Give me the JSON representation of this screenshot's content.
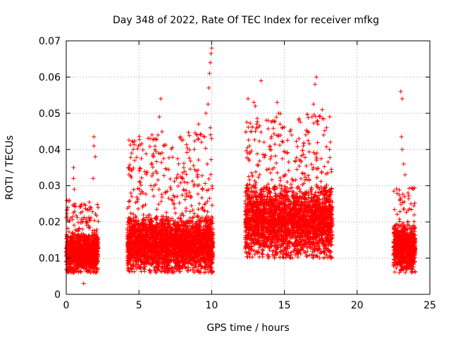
{
  "chart_data": {
    "type": "scatter",
    "title": "Day 348 of 2022, Rate Of TEC Index for receiver mfkg",
    "xlabel": "GPS time / hours",
    "ylabel": "ROTI / TECUs",
    "xlim": [
      0,
      25
    ],
    "ylim": [
      0,
      0.07
    ],
    "x_ticks": [
      "0",
      "5",
      "10",
      "15",
      "20",
      "25"
    ],
    "y_ticks": [
      "0",
      "0.01",
      "0.02",
      "0.03",
      "0.04",
      "0.05",
      "0.06",
      "0.07"
    ],
    "x_tick_values": [
      0,
      5,
      10,
      15,
      20,
      25
    ],
    "y_tick_values": [
      0,
      0.01,
      0.02,
      0.03,
      0.04,
      0.05,
      0.06,
      0.07
    ],
    "grid": true,
    "marker": "+",
    "color": "#ff0000",
    "segments": [
      {
        "x_range": [
          0.0,
          2.2
        ],
        "core": [
          0.006,
          0.016
        ],
        "spread_max": 0.026
      },
      {
        "x_range": [
          4.2,
          10.1
        ],
        "core": [
          0.006,
          0.02
        ],
        "spread_max": 0.045
      },
      {
        "x_range": [
          12.3,
          18.3
        ],
        "core": [
          0.01,
          0.028
        ],
        "spread_max": 0.05
      },
      {
        "x_range": [
          22.5,
          24.0
        ],
        "core": [
          0.006,
          0.018
        ],
        "spread_max": 0.03
      }
    ],
    "points": [
      [
        0.1,
        0.024
      ],
      [
        0.2,
        0.026
      ],
      [
        0.5,
        0.035
      ],
      [
        0.5,
        0.032
      ],
      [
        0.55,
        0.029
      ],
      [
        1.2,
        0.003
      ],
      [
        1.9,
        0.0435
      ],
      [
        1.9,
        0.041
      ],
      [
        2.0,
        0.038
      ],
      [
        1.85,
        0.032
      ],
      [
        4.3,
        0.035
      ],
      [
        4.5,
        0.039
      ],
      [
        4.6,
        0.042
      ],
      [
        4.7,
        0.037
      ],
      [
        6.5,
        0.054
      ],
      [
        6.4,
        0.049
      ],
      [
        6.1,
        0.04
      ],
      [
        6.0,
        0.038
      ],
      [
        7.2,
        0.029
      ],
      [
        8.0,
        0.032
      ],
      [
        8.8,
        0.04
      ],
      [
        9.0,
        0.044
      ],
      [
        9.1,
        0.047
      ],
      [
        9.3,
        0.042
      ],
      [
        9.6,
        0.05
      ],
      [
        9.75,
        0.0525
      ],
      [
        9.8,
        0.057
      ],
      [
        9.85,
        0.061
      ],
      [
        9.9,
        0.064
      ],
      [
        9.95,
        0.0665
      ],
      [
        10.0,
        0.068
      ],
      [
        9.9,
        0.046
      ],
      [
        10.0,
        0.043
      ],
      [
        12.5,
        0.054
      ],
      [
        12.7,
        0.045
      ],
      [
        12.6,
        0.041
      ],
      [
        12.9,
        0.053
      ],
      [
        13.0,
        0.052
      ],
      [
        13.1,
        0.047
      ],
      [
        13.4,
        0.059
      ],
      [
        13.6,
        0.042
      ],
      [
        14.0,
        0.04
      ],
      [
        14.5,
        0.053
      ],
      [
        14.6,
        0.05
      ],
      [
        14.7,
        0.047
      ],
      [
        14.6,
        0.044
      ],
      [
        14.9,
        0.042
      ],
      [
        15.2,
        0.039
      ],
      [
        15.5,
        0.044
      ],
      [
        16.0,
        0.043
      ],
      [
        16.3,
        0.041
      ],
      [
        16.6,
        0.045
      ],
      [
        16.9,
        0.049
      ],
      [
        17.0,
        0.0525
      ],
      [
        17.1,
        0.058
      ],
      [
        17.2,
        0.06
      ],
      [
        17.3,
        0.047
      ],
      [
        17.6,
        0.051
      ],
      [
        17.7,
        0.044
      ],
      [
        17.9,
        0.046
      ],
      [
        18.1,
        0.04
      ],
      [
        23.0,
        0.056
      ],
      [
        23.1,
        0.054
      ],
      [
        23.05,
        0.0435
      ],
      [
        23.1,
        0.04
      ],
      [
        23.2,
        0.036
      ],
      [
        23.3,
        0.033
      ],
      [
        23.5,
        0.028
      ],
      [
        23.7,
        0.025
      ]
    ]
  }
}
